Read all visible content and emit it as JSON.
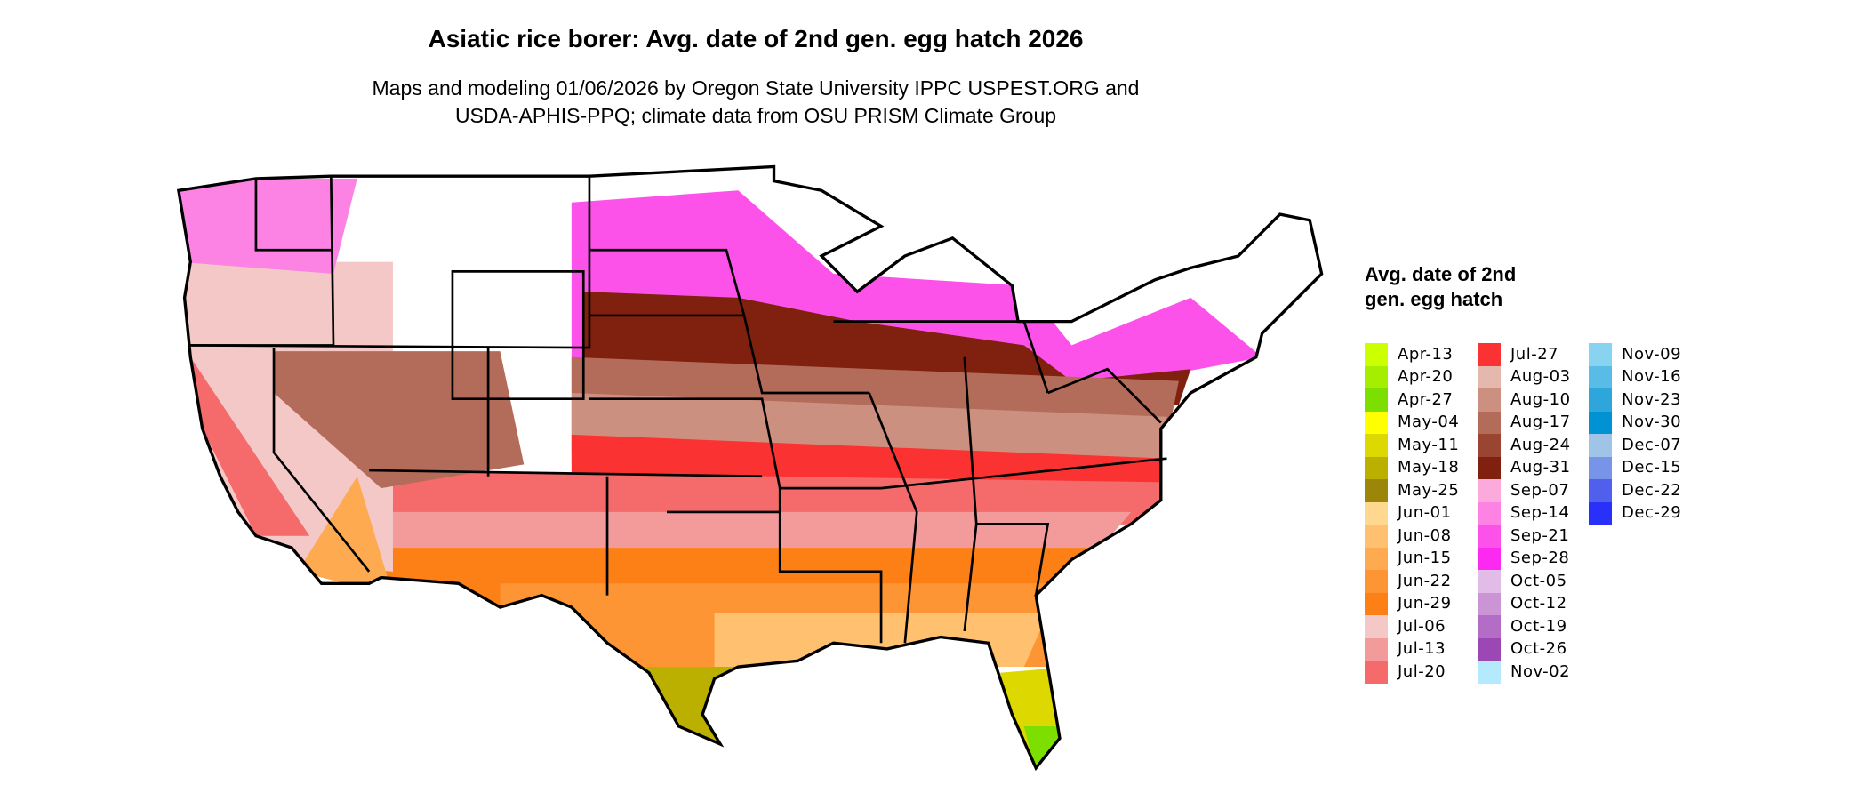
{
  "title": "Asiatic rice borer: Avg. date of 2nd gen. egg hatch 2026",
  "subtitle_line1": "Maps and modeling 01/06/2026 by Oregon State University IPPC USPEST.ORG and",
  "subtitle_line2": "USDA-APHIS-PPQ; climate data from OSU PRISM Climate Group",
  "legend": {
    "title": "Avg. date of 2nd gen. egg hatch",
    "items": [
      {
        "label": "Apr-13",
        "color": "#ccff00"
      },
      {
        "label": "Apr-20",
        "color": "#a6ee00"
      },
      {
        "label": "Apr-27",
        "color": "#7ddf00"
      },
      {
        "label": "May-04",
        "color": "#ffff00"
      },
      {
        "label": "May-11",
        "color": "#dcd800"
      },
      {
        "label": "May-18",
        "color": "#bbb000"
      },
      {
        "label": "May-25",
        "color": "#9c860a"
      },
      {
        "label": "Jun-01",
        "color": "#ffd890"
      },
      {
        "label": "Jun-08",
        "color": "#ffc170"
      },
      {
        "label": "Jun-15",
        "color": "#fdaa50"
      },
      {
        "label": "Jun-22",
        "color": "#fd9535"
      },
      {
        "label": "Jun-29",
        "color": "#fc8015"
      },
      {
        "label": "Jul-06",
        "color": "#f5c8c8"
      },
      {
        "label": "Jul-13",
        "color": "#f39a9a"
      },
      {
        "label": "Jul-20",
        "color": "#f56a6a"
      },
      {
        "label": "Jul-27",
        "color": "#fa3232"
      },
      {
        "label": "Aug-03",
        "color": "#e5b8ae"
      },
      {
        "label": "Aug-10",
        "color": "#cc9080"
      },
      {
        "label": "Aug-17",
        "color": "#b46c5a"
      },
      {
        "label": "Aug-24",
        "color": "#9a4432"
      },
      {
        "label": "Aug-31",
        "color": "#80200e"
      },
      {
        "label": "Sep-07",
        "color": "#fcaadc"
      },
      {
        "label": "Sep-14",
        "color": "#fc82e4"
      },
      {
        "label": "Sep-21",
        "color": "#fc52ea"
      },
      {
        "label": "Sep-28",
        "color": "#fc2af0"
      },
      {
        "label": "Oct-05",
        "color": "#e0bce6"
      },
      {
        "label": "Oct-12",
        "color": "#cb94d5"
      },
      {
        "label": "Oct-19",
        "color": "#b46dc4"
      },
      {
        "label": "Oct-26",
        "color": "#9b48b5"
      },
      {
        "label": "Nov-02",
        "color": "#b4eafc"
      },
      {
        "label": "Nov-09",
        "color": "#88d4f0"
      },
      {
        "label": "Nov-16",
        "color": "#58bce6"
      },
      {
        "label": "Nov-23",
        "color": "#2ea6dc"
      },
      {
        "label": "Nov-30",
        "color": "#0092d2"
      },
      {
        "label": "Dec-07",
        "color": "#a0c4e8"
      },
      {
        "label": "Dec-15",
        "color": "#7894e8"
      },
      {
        "label": "Dec-22",
        "color": "#5060ec"
      },
      {
        "label": "Dec-29",
        "color": "#2830fa"
      }
    ]
  }
}
